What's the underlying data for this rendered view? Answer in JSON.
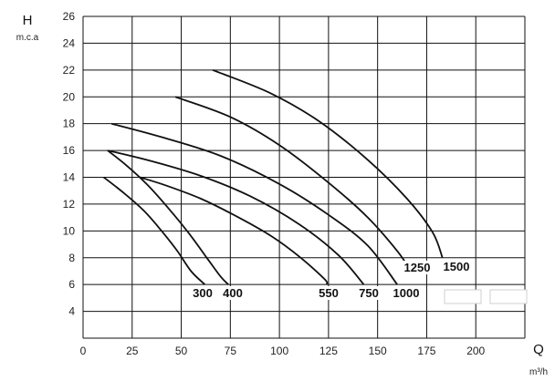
{
  "chart_data": {
    "type": "line",
    "x_axis": {
      "symbol": "Q",
      "unit": "m³/h",
      "min": 0,
      "max": 225,
      "ticks": [
        0,
        25,
        50,
        75,
        100,
        125,
        150,
        175,
        200
      ]
    },
    "y_axis": {
      "symbol": "H",
      "unit": "m.c.a",
      "min": 2,
      "max": 26,
      "ticks": [
        4,
        6,
        8,
        10,
        12,
        14,
        16,
        18,
        20,
        22,
        24,
        26
      ]
    },
    "grid": true,
    "series": [
      {
        "name": "300",
        "points": [
          [
            10.5,
            14
          ],
          [
            21,
            12.8
          ],
          [
            31,
            11.5
          ],
          [
            40,
            10
          ],
          [
            48,
            8.5
          ],
          [
            55,
            7
          ],
          [
            62,
            6
          ]
        ]
      },
      {
        "name": "400",
        "points": [
          [
            12.5,
            16
          ],
          [
            22,
            14.9
          ],
          [
            33,
            13.4
          ],
          [
            44,
            11.6
          ],
          [
            54,
            9.8
          ],
          [
            63,
            8
          ],
          [
            70,
            6.6
          ],
          [
            74,
            6
          ]
        ]
      },
      {
        "name": "550",
        "points": [
          [
            29,
            14
          ],
          [
            42,
            13.4
          ],
          [
            60,
            12.4
          ],
          [
            78,
            11.1
          ],
          [
            96,
            9.6
          ],
          [
            110,
            8.1
          ],
          [
            123,
            6.4
          ],
          [
            124,
            6
          ]
        ]
      },
      {
        "name": "750",
        "points": [
          [
            12.5,
            16
          ],
          [
            35,
            15.2
          ],
          [
            60,
            14.1
          ],
          [
            85,
            12.6
          ],
          [
            110,
            10.5
          ],
          [
            130,
            8.2
          ],
          [
            143,
            6
          ]
        ]
      },
      {
        "name": "1000",
        "points": [
          [
            14.5,
            18
          ],
          [
            40,
            17
          ],
          [
            70,
            15.6
          ],
          [
            100,
            13.5
          ],
          [
            125,
            11.2
          ],
          [
            145,
            8.9
          ],
          [
            160,
            6
          ]
        ]
      },
      {
        "name": "1250",
        "points": [
          [
            47,
            20
          ],
          [
            75,
            18.5
          ],
          [
            100,
            16.4
          ],
          [
            125,
            13.6
          ],
          [
            145,
            11
          ],
          [
            160,
            8.5
          ],
          [
            167,
            7
          ]
        ]
      },
      {
        "name": "1500",
        "points": [
          [
            66,
            22
          ],
          [
            95,
            20.3
          ],
          [
            120,
            18.2
          ],
          [
            145,
            15.3
          ],
          [
            165,
            12.4
          ],
          [
            178,
            9.9
          ],
          [
            183,
            8
          ]
        ]
      }
    ]
  }
}
